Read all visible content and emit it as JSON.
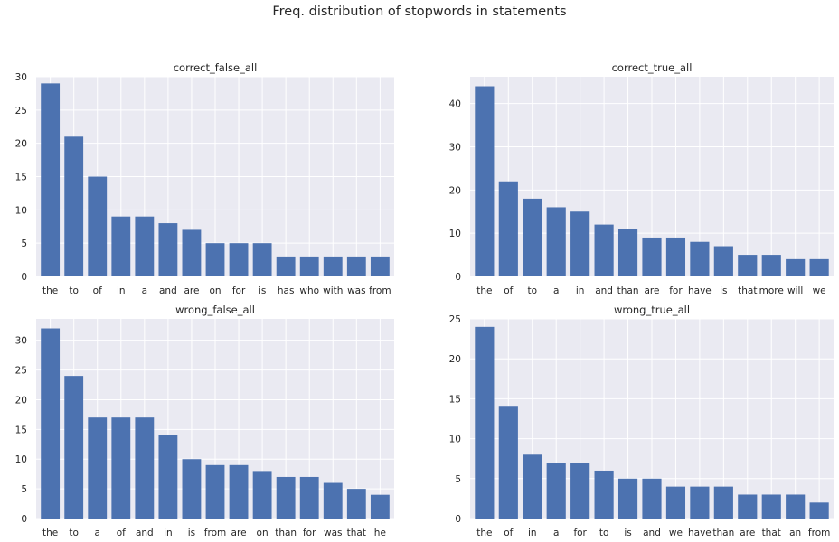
{
  "title": "Freq. distribution of stopwords in statements",
  "colors": {
    "bar": "#4c72b0",
    "panel_bg": "#eaeaf2",
    "grid": "#ffffff",
    "text": "#262626"
  },
  "chart_data": [
    {
      "type": "bar",
      "title": "correct_false_all",
      "categories": [
        "the",
        "to",
        "of",
        "in",
        "a",
        "and",
        "are",
        "on",
        "for",
        "is",
        "has",
        "who",
        "with",
        "was",
        "from"
      ],
      "values": [
        29,
        21,
        15,
        9,
        9,
        8,
        7,
        5,
        5,
        5,
        3,
        3,
        3,
        3,
        3
      ],
      "ylim": [
        0,
        30
      ],
      "yticks": [
        0,
        5,
        10,
        15,
        20,
        25,
        30
      ],
      "grid": true
    },
    {
      "type": "bar",
      "title": "correct_true_all",
      "categories": [
        "the",
        "of",
        "to",
        "a",
        "in",
        "and",
        "than",
        "are",
        "for",
        "have",
        "is",
        "that",
        "more",
        "will",
        "we"
      ],
      "values": [
        44,
        22,
        18,
        16,
        15,
        12,
        11,
        9,
        9,
        8,
        7,
        5,
        5,
        4,
        4
      ],
      "ylim": [
        0,
        46.2
      ],
      "yticks": [
        0,
        10,
        20,
        30,
        40
      ],
      "grid": true
    },
    {
      "type": "bar",
      "title": "wrong_false_all",
      "categories": [
        "the",
        "to",
        "a",
        "of",
        "and",
        "in",
        "is",
        "from",
        "are",
        "on",
        "than",
        "for",
        "was",
        "that",
        "he"
      ],
      "values": [
        32,
        24,
        17,
        17,
        17,
        14,
        10,
        9,
        9,
        8,
        7,
        7,
        6,
        5,
        4
      ],
      "ylim": [
        0,
        33.6
      ],
      "yticks": [
        0,
        5,
        10,
        15,
        20,
        25,
        30
      ],
      "grid": true
    },
    {
      "type": "bar",
      "title": "wrong_true_all",
      "categories": [
        "the",
        "of",
        "in",
        "a",
        "for",
        "to",
        "is",
        "and",
        "we",
        "have",
        "than",
        "are",
        "that",
        "an",
        "from"
      ],
      "values": [
        24,
        14,
        8,
        7,
        7,
        6,
        5,
        5,
        4,
        4,
        4,
        3,
        3,
        3,
        2
      ],
      "ylim": [
        0,
        25
      ],
      "yticks": [
        0,
        5,
        10,
        15,
        20,
        25
      ],
      "grid": true
    }
  ]
}
